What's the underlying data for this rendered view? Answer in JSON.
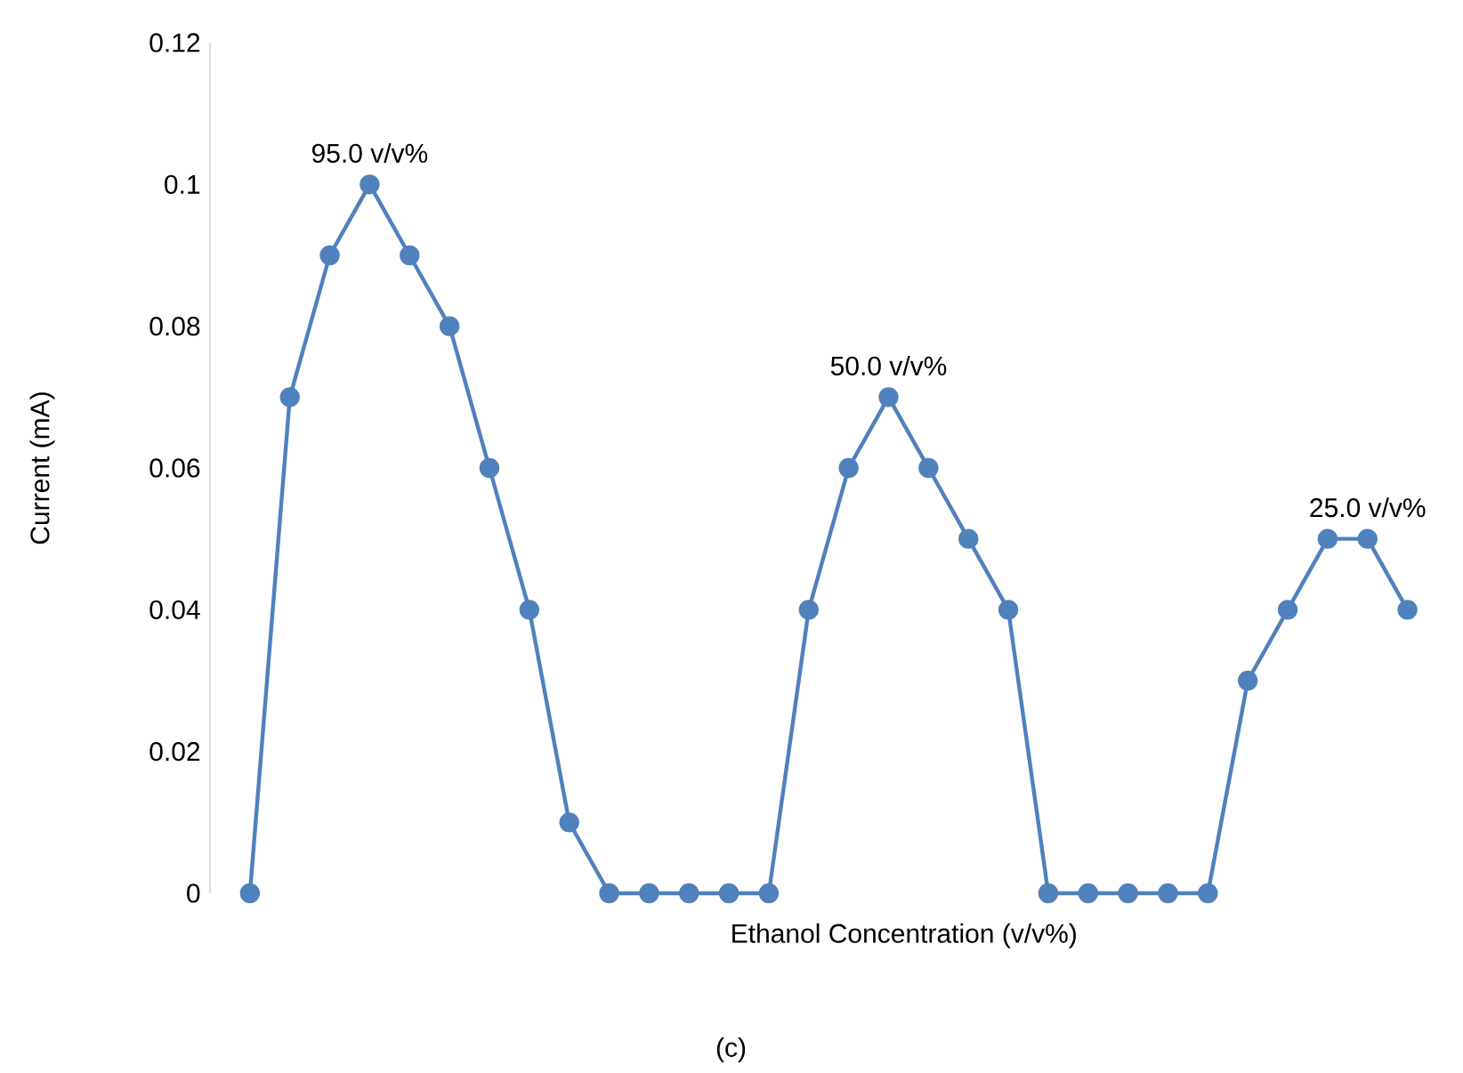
{
  "chart_data": {
    "type": "line",
    "ylabel": "Current (mA)",
    "xlabel": "Ethanol Concentration (v/v%)",
    "categories": [
      null,
      null,
      null,
      null,
      null,
      null,
      null,
      null,
      null,
      null,
      null,
      null,
      null,
      null,
      null,
      null,
      null,
      null,
      null,
      null,
      null,
      null,
      null,
      null,
      null,
      null,
      null,
      null,
      null,
      null
    ],
    "values": [
      0,
      0.07,
      0.09,
      0.1,
      0.09,
      0.08,
      0.06,
      0.04,
      0.01,
      0,
      0,
      0,
      0,
      0,
      0.04,
      0.06,
      0.07,
      0.06,
      0.05,
      0.04,
      0,
      0,
      0,
      0,
      0,
      0.03,
      0.04,
      0.05,
      0.05,
      0.04
    ],
    "color": "#4f81bd",
    "marker": "circle",
    "line_style": "solid",
    "grid": false,
    "ylim": [
      0,
      0.12
    ],
    "yticks": [
      0,
      0.02,
      0.04,
      0.06,
      0.08,
      0.1,
      0.12
    ],
    "annotations": [
      {
        "text": "95.0 v/v%",
        "y": 0.1
      },
      {
        "text": "50.0 v/v%",
        "y": 0.07
      },
      {
        "text": "25.0 v/v%",
        "y": 0.05
      },
      "(c)"
    ]
  }
}
